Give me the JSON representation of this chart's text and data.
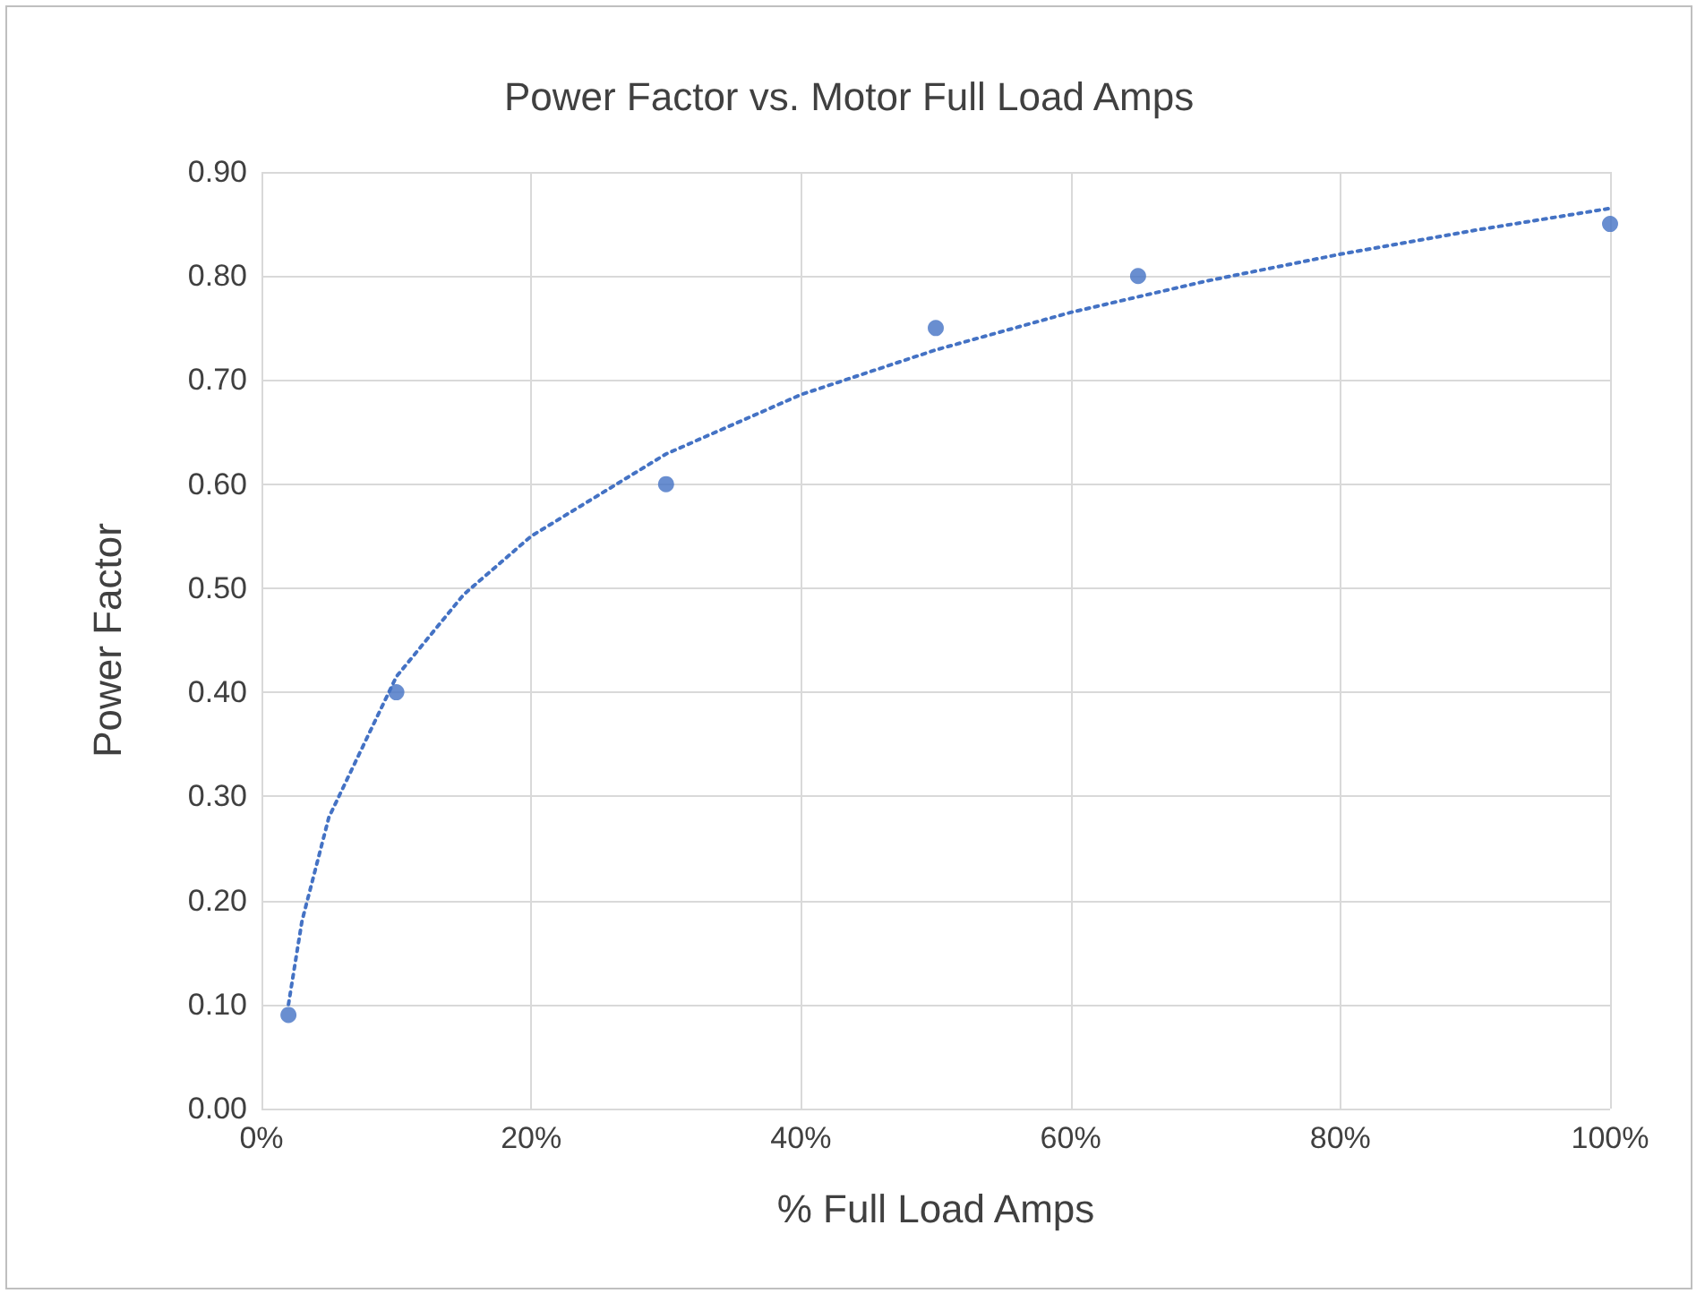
{
  "chart_data": {
    "type": "scatter",
    "title": "Power Factor vs. Motor Full Load Amps",
    "xlabel": "% Full Load Amps",
    "ylabel": "Power Factor",
    "series": [
      {
        "color": "#4472c4",
        "marker": "circle",
        "x": [
          2,
          10,
          30,
          50,
          65,
          100
        ],
        "values": [
          0.09,
          0.4,
          0.6,
          0.75,
          0.8,
          0.85
        ]
      },
      {
        "type": "line",
        "color": "#4472c4",
        "marker": "none",
        "line_style": "dotted",
        "x": [
          2,
          3,
          5,
          10,
          15,
          20,
          30,
          40,
          50,
          60,
          70,
          80,
          90,
          100
        ],
        "values": [
          0.1,
          0.18,
          0.28,
          0.415,
          0.494,
          0.55,
          0.629,
          0.686,
          0.729,
          0.765,
          0.795,
          0.821,
          0.844,
          0.865
        ]
      }
    ],
    "xlim": [
      0,
      100
    ],
    "xticks": [
      {
        "value": 0,
        "label": "0%"
      },
      {
        "value": 20,
        "label": "20%"
      },
      {
        "value": 40,
        "label": "40%"
      },
      {
        "value": 60,
        "label": "60%"
      },
      {
        "value": 80,
        "label": "80%"
      },
      {
        "value": 100,
        "label": "100%"
      }
    ],
    "ylim": [
      0,
      0.9
    ],
    "yticks": [
      {
        "value": 0,
        "label": "0.00"
      },
      {
        "value": 0.1,
        "label": "0.10"
      },
      {
        "value": 0.2,
        "label": "0.20"
      },
      {
        "value": 0.3,
        "label": "0.30"
      },
      {
        "value": 0.4,
        "label": "0.40"
      },
      {
        "value": 0.5,
        "label": "0.50"
      },
      {
        "value": 0.6,
        "label": "0.60"
      },
      {
        "value": 0.7,
        "label": "0.70"
      },
      {
        "value": 0.8,
        "label": "0.80"
      },
      {
        "value": 0.9,
        "label": "0.90"
      }
    ],
    "grid": true
  }
}
